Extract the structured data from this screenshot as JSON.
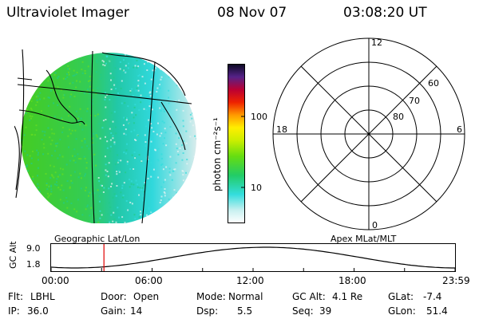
{
  "header": {
    "title": "Ultraviolet Imager",
    "date": "08 Nov 07",
    "time": "03:08:20 UT"
  },
  "colorbar": {
    "label": "photon cm⁻²s⁻¹",
    "tick_high": "100",
    "tick_low": "10"
  },
  "polar": {
    "mlt_top": "12",
    "mlt_left": "18",
    "mlt_right": "6",
    "mlt_bottom": "0",
    "lat_60": "60",
    "lat_70": "70",
    "lat_80": "80"
  },
  "plot_labels": {
    "left": "Geographic Lat/Lon",
    "right": "Apex MLat/MLT"
  },
  "orbit": {
    "ylabel": "GC Alt",
    "ytick_high": "9.0",
    "ytick_low": "1.8",
    "xticks": [
      "00:00",
      "06:00",
      "12:00",
      "18:00",
      "23:59"
    ],
    "marker_time_hours": 3.14
  },
  "footer": {
    "row1": [
      {
        "label": "Flt:",
        "value": "LBHL"
      },
      {
        "label": "Door:",
        "value": "Open"
      },
      {
        "label": "Mode:",
        "value": "Normal"
      },
      {
        "label": "GC Alt:",
        "value": "4.1 Re"
      },
      {
        "label": "GLat:",
        "value": "-7.4"
      }
    ],
    "row2": [
      {
        "label": "IP:",
        "value": "36.0"
      },
      {
        "label": "Gain:",
        "value": "14"
      },
      {
        "label": "Dsp:",
        "value": "5.5"
      },
      {
        "label": "Seq:",
        "value": "39"
      },
      {
        "label": "GLon:",
        "value": "51.4"
      }
    ]
  },
  "colors": {
    "marker": "#e00000"
  }
}
